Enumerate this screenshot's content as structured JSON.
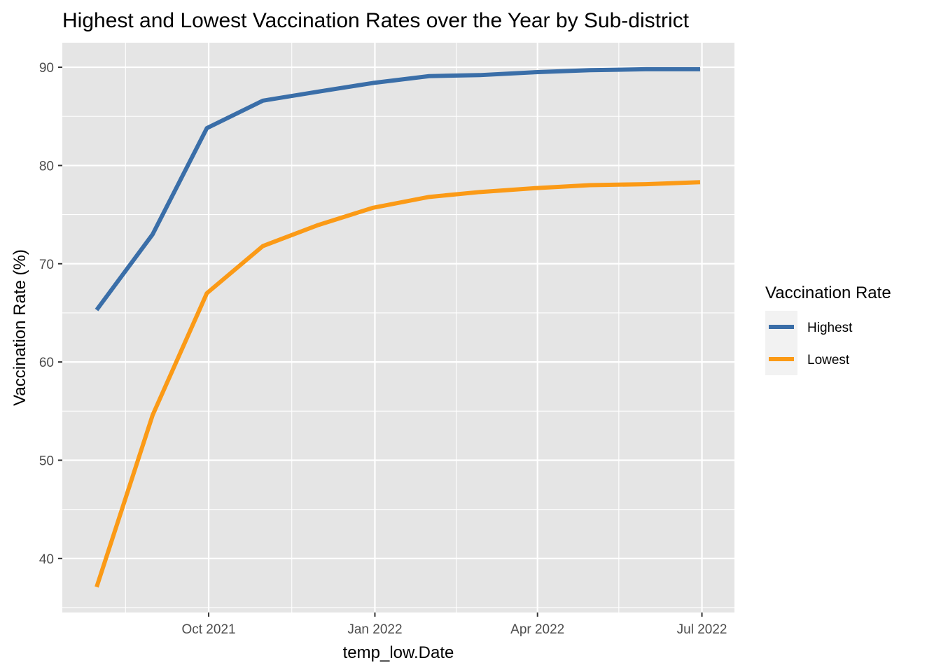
{
  "chart_data": {
    "type": "line",
    "title": "Highest and Lowest Vaccination Rates over the Year by Sub-district",
    "xlabel": "temp_low.Date",
    "ylabel": "Vaccination Rate (%)",
    "x_major_ticks": [
      "2021-10-01",
      "2022-01-01",
      "2022-04-01",
      "2022-07-01"
    ],
    "x_tick_labels": [
      "Oct 2021",
      "Jan 2022",
      "Apr 2022",
      "Jul 2022"
    ],
    "x_minor_ticks": [
      "2021-08-16",
      "2021-11-16",
      "2022-02-15",
      "2022-05-16"
    ],
    "xlim": [
      "2021-07-12",
      "2022-07-19"
    ],
    "y_ticks": [
      40,
      50,
      60,
      70,
      80,
      90
    ],
    "ylim": [
      34.5,
      92.5
    ],
    "grid": true,
    "x": [
      "2021-07-31",
      "2021-08-31",
      "2021-09-30",
      "2021-10-31",
      "2021-11-30",
      "2021-12-31",
      "2022-01-31",
      "2022-02-28",
      "2022-03-31",
      "2022-04-30",
      "2022-05-31",
      "2022-06-30"
    ],
    "series": [
      {
        "name": "Highest",
        "color": "#3A6EA8",
        "values": [
          65.3,
          73.0,
          83.8,
          86.6,
          87.5,
          88.4,
          89.1,
          89.2,
          89.5,
          89.7,
          89.8,
          89.8
        ]
      },
      {
        "name": "Lowest",
        "color": "#FB9A16",
        "values": [
          37.1,
          54.6,
          67.0,
          71.8,
          73.9,
          75.7,
          76.8,
          77.3,
          77.7,
          78.0,
          78.1,
          78.3
        ]
      }
    ],
    "legend": {
      "title": "Vaccination Rate",
      "position": "right"
    }
  }
}
